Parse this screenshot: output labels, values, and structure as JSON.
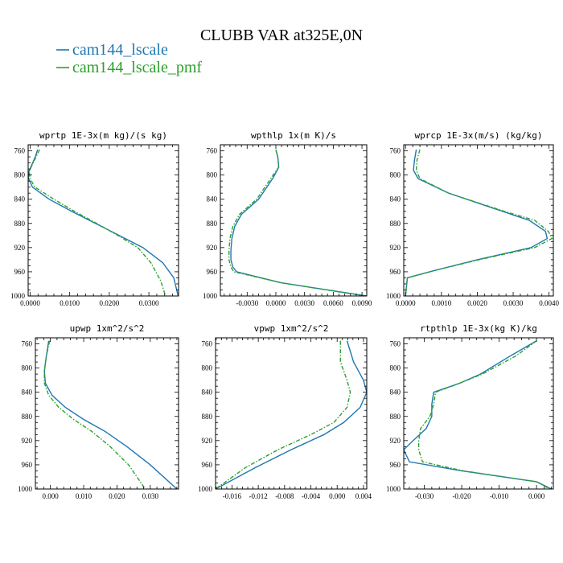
{
  "title": "CLUBB VAR at325E,0N",
  "legend": [
    {
      "label": "cam144_lscale",
      "color": "#1f77b4",
      "dash": "solid"
    },
    {
      "label": "cam144_lscale_pmf",
      "color": "#2ca02c",
      "dash": "dashdot"
    }
  ],
  "chart_data": [
    {
      "type": "line",
      "title": "wprtp  1E-3x(m kg)/(s kg)",
      "xlim": [
        -0.0005,
        0.0375
      ],
      "ylim": [
        1000,
        750
      ],
      "xticks": [
        0,
        0.01,
        0.02,
        0.03
      ],
      "xtick_labels": [
        "0.0000",
        "0.0100",
        "0.0200",
        "0.0300"
      ],
      "yticks": [
        760,
        800,
        840,
        880,
        920,
        960,
        1000
      ],
      "ytick_labels": [
        "760",
        "800",
        "840",
        "880",
        "920",
        "960",
        "1000"
      ],
      "series": [
        {
          "name": "cam144_lscale",
          "x": [
            0.0019,
            0.0013,
            0.0005,
            -0.0003,
            -0.0004,
            0.0006,
            0.0048,
            0.0105,
            0.0165,
            0.0225,
            0.0285,
            0.0335,
            0.0363,
            0.0374
          ],
          "y": [
            758,
            770,
            782,
            794,
            806,
            820,
            840,
            860,
            880,
            900,
            920,
            945,
            970,
            1000
          ]
        },
        {
          "name": "cam144_lscale_pmf",
          "x": [
            0.0024,
            0.0015,
            0.0006,
            -0.0002,
            0.0,
            0.0012,
            0.006,
            0.0112,
            0.0168,
            0.0222,
            0.0272,
            0.0305,
            0.033,
            0.0342
          ],
          "y": [
            758,
            770,
            782,
            794,
            806,
            820,
            840,
            860,
            880,
            900,
            920,
            945,
            975,
            1000
          ]
        }
      ]
    },
    {
      "type": "line",
      "title": "wpthlp  1x(m K)/s",
      "xlim": [
        -0.0058,
        0.0095
      ],
      "ylim": [
        1000,
        750
      ],
      "xticks": [
        -0.003,
        0,
        0.003,
        0.006,
        0.009
      ],
      "xtick_labels": [
        "-0.0030",
        "0.0000",
        "0.0030",
        "0.0060",
        "0.0090"
      ],
      "yticks": [
        760,
        800,
        840,
        880,
        920,
        960,
        1000
      ],
      "ytick_labels": [
        "760",
        "800",
        "840",
        "880",
        "920",
        "960",
        "1000"
      ],
      "series": [
        {
          "name": "cam144_lscale",
          "x": [
            0.0,
            0.0002,
            0.0003,
            -0.0003,
            -0.0018,
            -0.0036,
            -0.0043,
            -0.0046,
            -0.0047,
            -0.0047,
            -0.0045,
            -0.0041,
            0.0005,
            0.0095
          ],
          "y": [
            758,
            770,
            787,
            805,
            840,
            865,
            885,
            905,
            925,
            940,
            952,
            960,
            978,
            1000
          ]
        },
        {
          "name": "cam144_lscale_pmf",
          "x": [
            0.0,
            0.0002,
            0.0003,
            -0.0005,
            -0.002,
            -0.0038,
            -0.0045,
            -0.0048,
            -0.0049,
            -0.0049,
            -0.0047,
            -0.0044,
            0.0005,
            0.0093
          ],
          "y": [
            758,
            770,
            787,
            805,
            840,
            865,
            885,
            905,
            925,
            940,
            952,
            960,
            978,
            1000
          ]
        }
      ]
    },
    {
      "type": "line",
      "title": "wprcp  1E-3x(m/s) (kg/kg)",
      "xlim": [
        -5e-05,
        0.00412
      ],
      "ylim": [
        1000,
        750
      ],
      "xticks": [
        0,
        0.001,
        0.002,
        0.003,
        0.004
      ],
      "xtick_labels": [
        "0.0000",
        "0.0010",
        "0.0020",
        "0.0030",
        "0.0040"
      ],
      "yticks": [
        760,
        800,
        840,
        880,
        920,
        960,
        1000
      ],
      "ytick_labels": [
        "760",
        "800",
        "840",
        "880",
        "920",
        "960",
        "1000"
      ],
      "series": [
        {
          "name": "cam144_lscale",
          "x": [
            0.0003,
            0.00025,
            0.00022,
            0.00035,
            0.0012,
            0.0027,
            0.00345,
            0.0039,
            0.00395,
            0.0035,
            0.002,
            0.0008,
            5e-05,
            0.0
          ],
          "y": [
            758,
            775,
            792,
            806,
            830,
            860,
            875,
            893,
            905,
            920,
            940,
            958,
            970,
            1000
          ]
        },
        {
          "name": "cam144_lscale_pmf",
          "x": [
            0.0004,
            0.00032,
            0.0003,
            0.0004,
            0.0012,
            0.00275,
            0.0036,
            0.00398,
            0.00408,
            0.0036,
            0.00205,
            0.0008,
            5e-05,
            0.0
          ],
          "y": [
            758,
            775,
            792,
            806,
            830,
            860,
            875,
            893,
            905,
            920,
            940,
            958,
            970,
            1000
          ]
        }
      ]
    },
    {
      "type": "line",
      "title": "upwp  1xm^2/s^2",
      "xlim": [
        -0.0045,
        0.0385
      ],
      "ylim": [
        1000,
        750
      ],
      "xticks": [
        0,
        0.01,
        0.02,
        0.03
      ],
      "xtick_labels": [
        "0.000",
        "0.010",
        "0.020",
        "0.030"
      ],
      "yticks": [
        760,
        800,
        840,
        880,
        920,
        960,
        1000
      ],
      "ytick_labels": [
        "760",
        "800",
        "840",
        "880",
        "920",
        "960",
        "1000"
      ],
      "series": [
        {
          "name": "cam144_lscale",
          "x": [
            -0.0005,
            -0.0012,
            -0.0018,
            -0.0015,
            0.0005,
            0.0045,
            0.01,
            0.0165,
            0.023,
            0.03,
            0.038
          ],
          "y": [
            755,
            780,
            805,
            825,
            845,
            865,
            885,
            905,
            930,
            960,
            1000
          ]
        },
        {
          "name": "cam144_lscale_pmf",
          "x": [
            -0.0002,
            -0.0012,
            -0.0018,
            -0.0018,
            -0.0005,
            0.0025,
            0.007,
            0.0125,
            0.018,
            0.0235,
            0.0285
          ],
          "y": [
            755,
            780,
            805,
            825,
            845,
            865,
            885,
            905,
            930,
            960,
            1000
          ]
        }
      ]
    },
    {
      "type": "line",
      "title": "vpwp  1xm^2/s^2",
      "xlim": [
        -0.0185,
        0.0045
      ],
      "ylim": [
        1000,
        750
      ],
      "xticks": [
        -0.016,
        -0.012,
        -0.008,
        -0.004,
        0,
        0.004
      ],
      "xtick_labels": [
        "-0.016",
        "-0.012",
        "-0.008",
        "-0.004",
        "0.000",
        "0.004"
      ],
      "yticks": [
        760,
        800,
        840,
        880,
        920,
        960,
        1000
      ],
      "ytick_labels": [
        "760",
        "800",
        "840",
        "880",
        "920",
        "960",
        "1000"
      ],
      "series": [
        {
          "name": "cam144_lscale",
          "x": [
            0.0015,
            0.0025,
            0.004,
            0.0045,
            0.0035,
            0.001,
            -0.002,
            -0.007,
            -0.0125,
            -0.0185
          ],
          "y": [
            755,
            790,
            820,
            840,
            865,
            890,
            910,
            935,
            965,
            1000
          ]
        },
        {
          "name": "cam144_lscale_pmf",
          "x": [
            0.0005,
            0.0005,
            0.0015,
            0.002,
            0.0015,
            -0.0005,
            -0.004,
            -0.009,
            -0.014,
            -0.0185
          ],
          "y": [
            755,
            790,
            820,
            840,
            865,
            890,
            910,
            935,
            965,
            1000
          ]
        }
      ]
    },
    {
      "type": "line",
      "title": "rtpthlp  1E-3x(kg K)/kg",
      "xlim": [
        -0.0355,
        0.0045
      ],
      "ylim": [
        1000,
        750
      ],
      "xticks": [
        -0.03,
        -0.02,
        -0.01,
        0
      ],
      "xtick_labels": [
        "-0.030",
        "-0.020",
        "-0.010",
        "0.000"
      ],
      "yticks": [
        760,
        800,
        840,
        880,
        920,
        960,
        1000
      ],
      "ytick_labels": [
        "760",
        "800",
        "840",
        "880",
        "920",
        "960",
        "1000"
      ],
      "series": [
        {
          "name": "cam144_lscale",
          "x": [
            0.0,
            -0.007,
            -0.015,
            -0.0205,
            -0.0275,
            -0.028,
            -0.028,
            -0.0295,
            -0.033,
            -0.0355,
            -0.034,
            -0.02,
            0.0,
            0.004
          ],
          "y": [
            755,
            780,
            810,
            825,
            840,
            860,
            880,
            900,
            920,
            935,
            955,
            970,
            988,
            1000
          ]
        },
        {
          "name": "cam144_lscale_pmf",
          "x": [
            0.0,
            -0.0055,
            -0.0145,
            -0.0205,
            -0.027,
            -0.0275,
            -0.0285,
            -0.031,
            -0.0315,
            -0.0315,
            -0.0305,
            -0.0195,
            0.0,
            0.0035
          ],
          "y": [
            755,
            780,
            810,
            825,
            840,
            860,
            880,
            900,
            920,
            935,
            955,
            970,
            988,
            1000
          ]
        }
      ]
    }
  ]
}
